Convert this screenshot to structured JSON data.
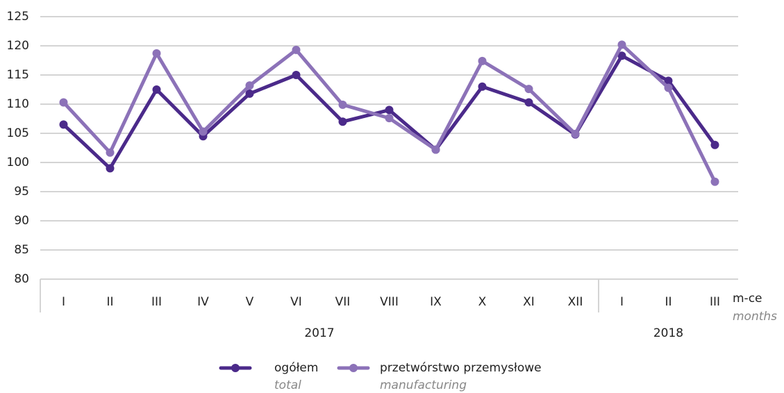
{
  "chart_data": {
    "type": "line",
    "categories": [
      "I",
      "II",
      "III",
      "IV",
      "V",
      "VI",
      "VII",
      "VIII",
      "IX",
      "X",
      "XI",
      "XII",
      "I",
      "II",
      "III"
    ],
    "groups": [
      {
        "label": "2017",
        "span": 12
      },
      {
        "label": "2018",
        "span": 3
      }
    ],
    "x_label": "m-ce",
    "x_label_en": "months",
    "series": [
      {
        "name": "ogółem",
        "name_en": "total",
        "color": "#4b2a8a",
        "values": [
          106.5,
          99,
          112.5,
          104.5,
          111.8,
          115,
          107,
          109,
          102.2,
          113,
          110.3,
          104.8,
          118.3,
          114,
          103
        ]
      },
      {
        "name": "przetwórstwo przemysłowe",
        "name_en": "manufacturing",
        "color": "#8c72b8",
        "values": [
          110.3,
          101.7,
          118.7,
          105.3,
          113.2,
          119.3,
          109.9,
          107.6,
          102.2,
          117.4,
          112.6,
          104.9,
          120.2,
          112.8,
          96.7
        ]
      }
    ],
    "ylim": [
      80,
      125
    ],
    "yticks": [
      80,
      85,
      90,
      95,
      100,
      105,
      110,
      115,
      120,
      125
    ],
    "grid": true
  }
}
